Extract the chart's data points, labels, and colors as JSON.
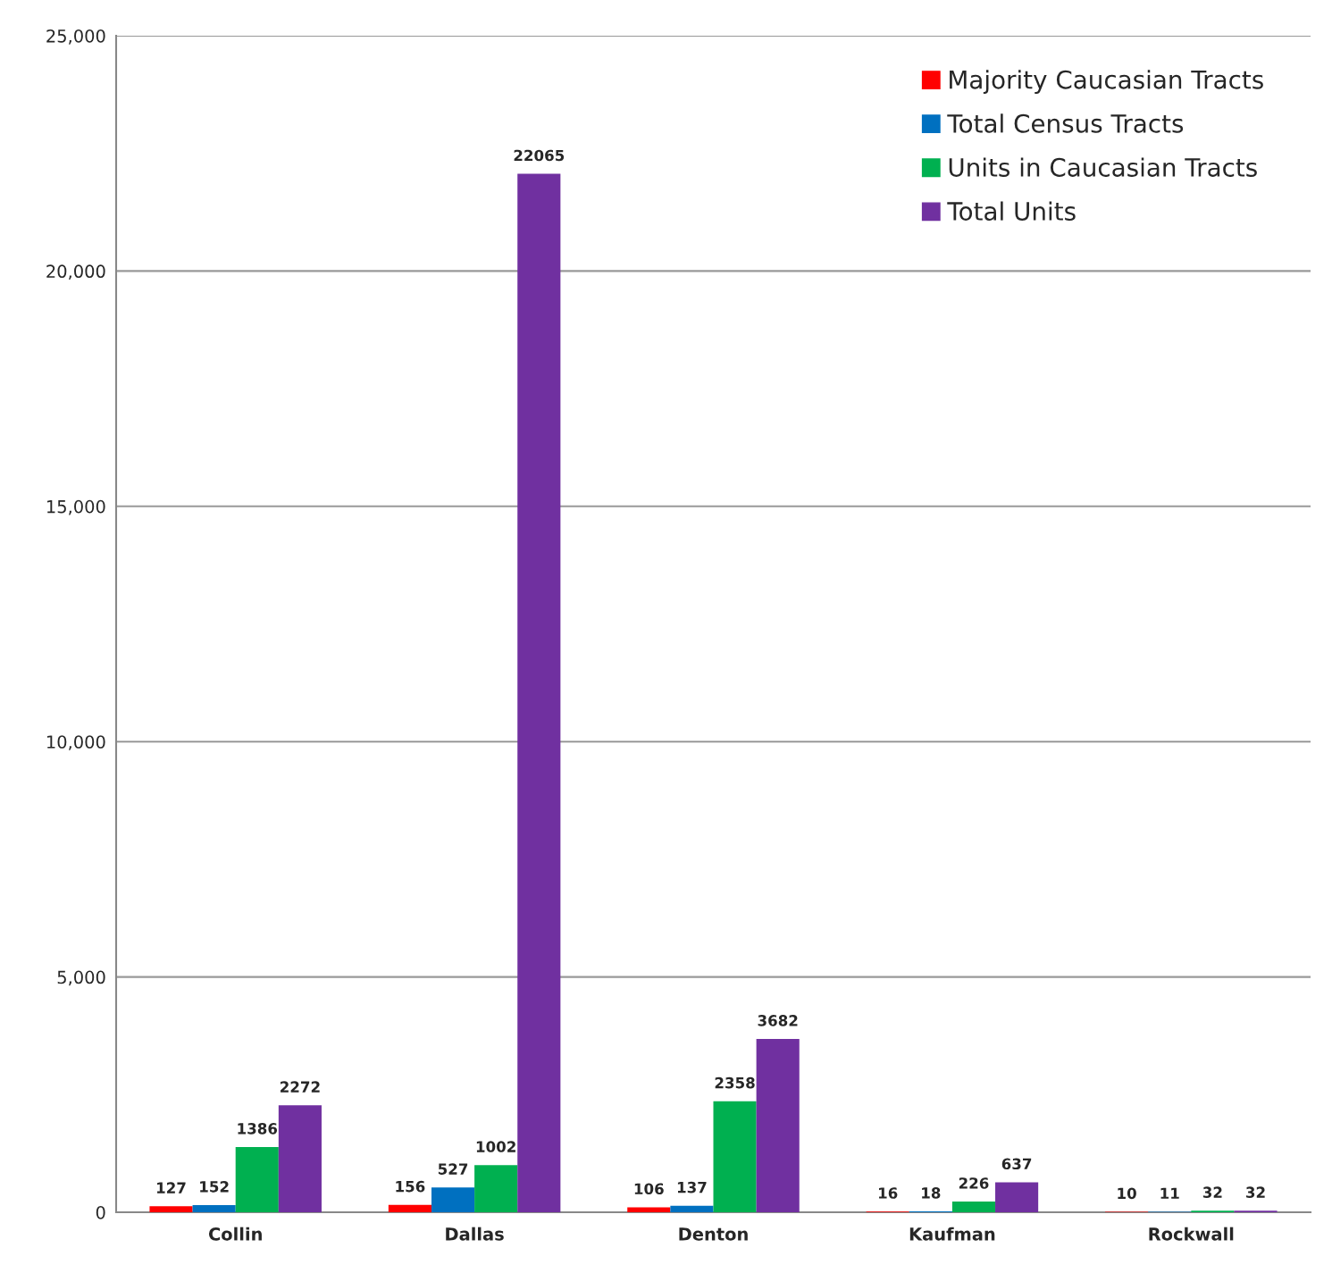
{
  "chart_data": {
    "type": "bar",
    "categories": [
      "Collin",
      "Dallas",
      "Denton",
      "Kaufman",
      "Rockwall"
    ],
    "series": [
      {
        "name": "Majority Caucasian Tracts",
        "color": "#ff0000",
        "values": [
          127,
          156,
          106,
          16,
          10
        ]
      },
      {
        "name": "Total Census Tracts",
        "color": "#0070c0",
        "values": [
          152,
          527,
          137,
          18,
          11
        ]
      },
      {
        "name": "Units in Caucasian Tracts",
        "color": "#00b050",
        "values": [
          1386,
          1002,
          2358,
          226,
          32
        ]
      },
      {
        "name": "Total Units",
        "color": "#7030a0",
        "values": [
          2272,
          22065,
          3682,
          637,
          32
        ]
      }
    ],
    "ylim": [
      0,
      25000
    ],
    "yticks": [
      0,
      {
        "value": 5000,
        "label": "5,000"
      },
      {
        "value": 10000,
        "label": "10,000"
      },
      {
        "value": 15000,
        "label": "15,000"
      },
      {
        "value": 20000,
        "label": "20,000"
      },
      {
        "value": 25000,
        "label": "25,000"
      }
    ],
    "grid": "y",
    "legend": "top right",
    "data_labels": true
  }
}
